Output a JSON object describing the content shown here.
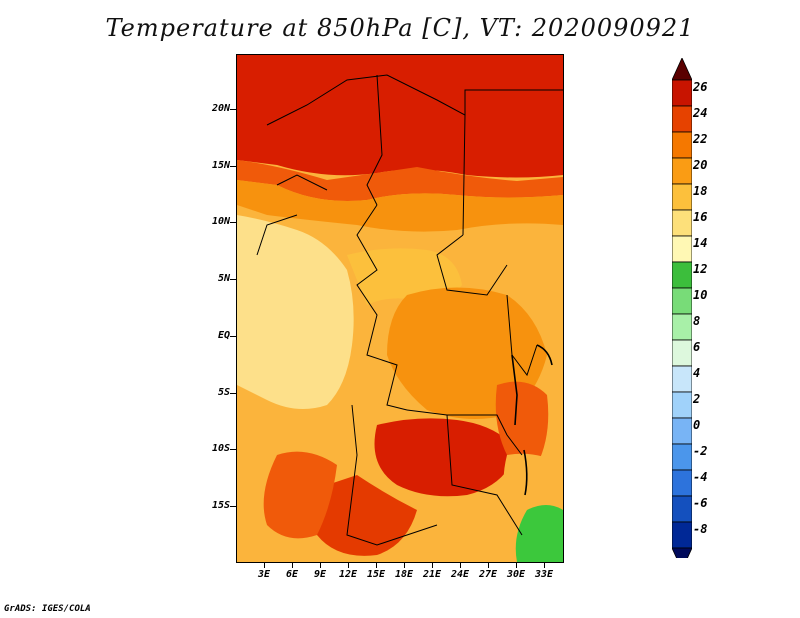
{
  "title": "Temperature at 850hPa [C], VT: 2020090921",
  "credit": "GrADS: IGES/COLA",
  "map": {
    "lat_labels": [
      "20N",
      "15N",
      "10N",
      "5N",
      "EQ",
      "5S",
      "10S",
      "15S"
    ],
    "lon_labels": [
      "3E",
      "6E",
      "9E",
      "12E",
      "15E",
      "18E",
      "21E",
      "24E",
      "27E",
      "30E",
      "33E"
    ]
  },
  "colorbar": {
    "labels": [
      "26",
      "24",
      "22",
      "20",
      "18",
      "16",
      "14",
      "12",
      "10",
      "8",
      "6",
      "4",
      "2",
      "0",
      "-2",
      "-4",
      "-6",
      "-8"
    ],
    "colors": [
      "#5a0000",
      "#c81400",
      "#e64200",
      "#f57800",
      "#fa9c14",
      "#fcc03c",
      "#fde07a",
      "#fff8b4",
      "#3cbe3c",
      "#78dc78",
      "#a8f0a8",
      "#ddf8dd",
      "#c8e6fa",
      "#a0d2fa",
      "#78b4f5",
      "#4b96eb",
      "#2d73dc",
      "#1450be",
      "#002896",
      "#000a5a"
    ]
  },
  "legend_colors": {
    "hot": "#d81e00",
    "warm": "#f05a0a",
    "mid": "#f7920e",
    "mild": "#fbb43c",
    "cool": "#fde08a",
    "green": "#3cc83c"
  }
}
